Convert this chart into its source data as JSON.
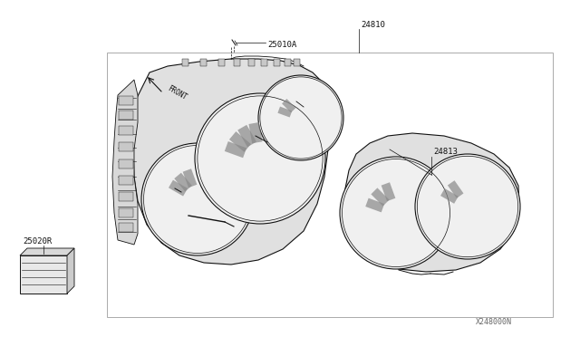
{
  "bg_color": "#ffffff",
  "lc": "#333333",
  "lc_dark": "#111111",
  "gray_fill": "#e0e0e0",
  "gray_medium": "#cccccc",
  "gray_light": "#f0f0f0",
  "hatch_color": "#888888",
  "title_bottom": "X248000N",
  "label_25010A": "25010A",
  "label_24810": "24810",
  "label_24813": "24813",
  "label_25020R": "25020R",
  "label_front": "FRONT",
  "font_size_label": 6.5,
  "font_size_bottom": 6
}
